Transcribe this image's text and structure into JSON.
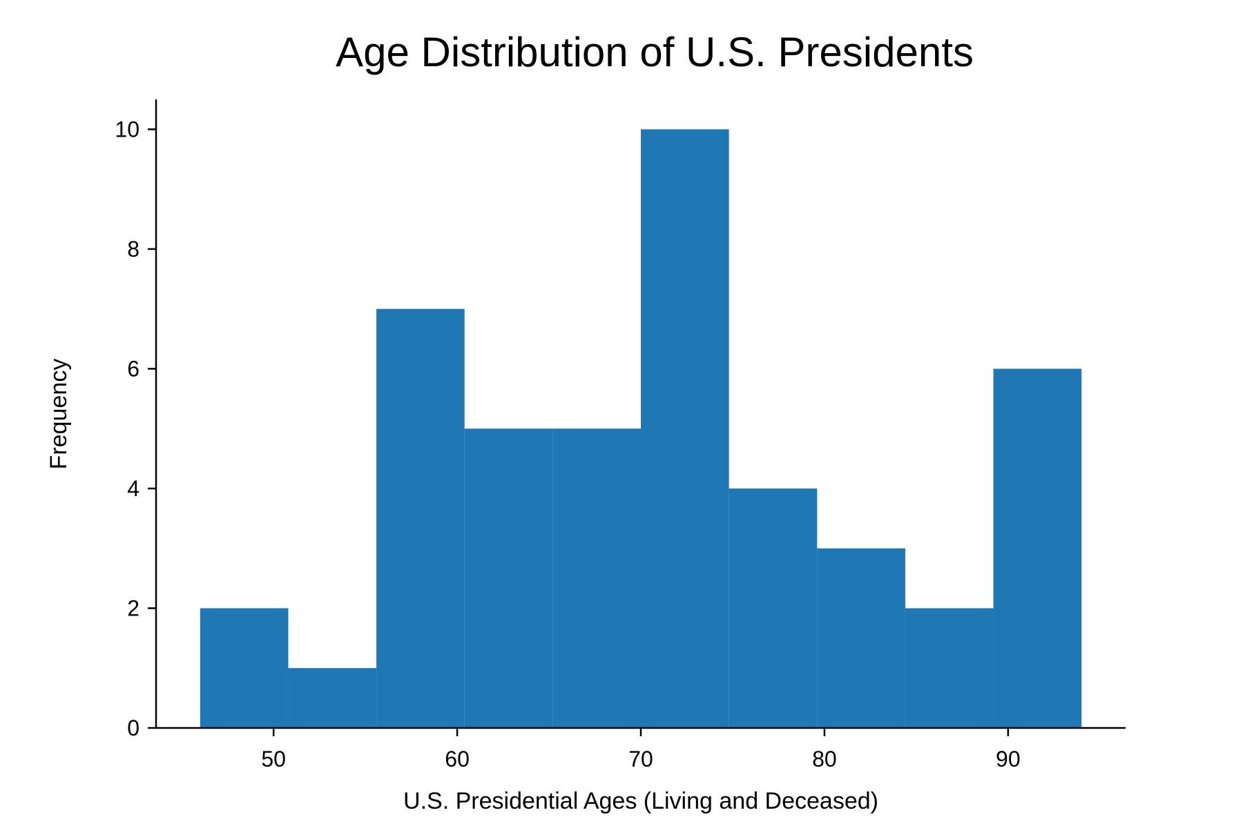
{
  "chart_data": {
    "type": "bar",
    "title": "Age Distribution of U.S. Presidents",
    "xlabel": "U.S. Presidential Ages (Living and Deceased)",
    "ylabel": "Frequency",
    "bin_edges": [
      46.0,
      50.8,
      55.6,
      60.4,
      65.2,
      70.0,
      74.8,
      79.6,
      84.4,
      89.2,
      94.0
    ],
    "values": [
      2,
      1,
      7,
      5,
      5,
      10,
      4,
      3,
      2,
      6
    ],
    "xlim": [
      43.6,
      96.4
    ],
    "ylim": [
      0,
      10.5
    ],
    "xticks": [
      50,
      60,
      70,
      80,
      90
    ],
    "yticks": [
      0,
      2,
      4,
      6,
      8,
      10
    ],
    "grid": false,
    "colors": {
      "bar": "#1f77b4"
    }
  }
}
